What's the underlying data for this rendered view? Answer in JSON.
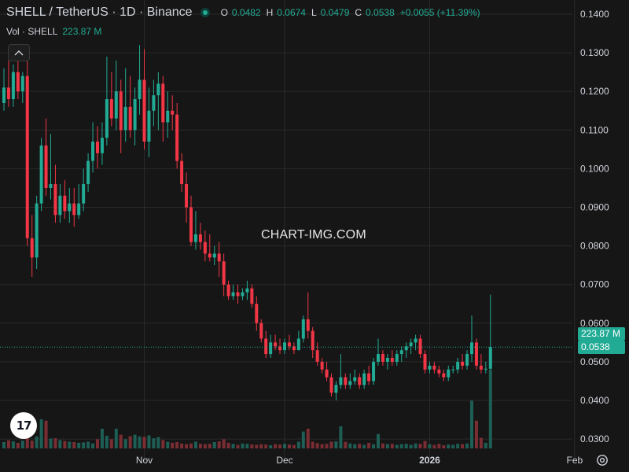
{
  "header": {
    "symbol": "SHELL / TetherUS · 1D · Binance",
    "open_label": "O",
    "open": "0.0482",
    "high_label": "H",
    "high": "0.0674",
    "low_label": "L",
    "low": "0.0479",
    "close_label": "C",
    "close": "0.0538",
    "change": "+0.0055 (+11.39%)"
  },
  "volume_legend": {
    "label": "Vol · SHELL",
    "value": "223.87 M"
  },
  "watermark": "CHART-IMG.COM",
  "logo_text": "17",
  "price_tags": {
    "volume": "223.87 M",
    "price": "0.0538"
  },
  "colors": {
    "up": "#22ab94",
    "down": "#f23645",
    "up_volume": "#1d5e55",
    "down_volume": "#7a2d33",
    "background": "#161616",
    "grid": "#2a2a2a",
    "text": "#d1d4dc"
  },
  "icons": {
    "collapse": "chevron-up-icon",
    "settings": "gear-icon",
    "logo": "tradingview-logo-icon"
  },
  "chart_data": {
    "type": "candlestick",
    "title": "SHELL / TetherUS · 1D · Binance",
    "y_ticks": [
      "0.1400",
      "0.1300",
      "0.1200",
      "0.1100",
      "0.1000",
      "0.0900",
      "0.0800",
      "0.0700",
      "0.0600",
      "0.0500",
      "0.0400",
      "0.0300"
    ],
    "ylim": [
      0.0265,
      0.1435
    ],
    "x_ticks": [
      {
        "label": "Nov",
        "index": 30
      },
      {
        "label": "Dec",
        "index": 60
      },
      {
        "label": "2026",
        "index": 91,
        "bold": true
      },
      {
        "label": "Feb",
        "index": 122
      }
    ],
    "last_price": 0.0538,
    "grid": true,
    "candles": [
      [
        0.117,
        0.126,
        0.115,
        0.121
      ],
      [
        0.121,
        0.128,
        0.116,
        0.118
      ],
      [
        0.118,
        0.127,
        0.116,
        0.125
      ],
      [
        0.125,
        0.13,
        0.118,
        0.12
      ],
      [
        0.12,
        0.125,
        0.117,
        0.124
      ],
      [
        0.124,
        0.129,
        0.08,
        0.082
      ],
      [
        0.082,
        0.088,
        0.072,
        0.077
      ],
      [
        0.077,
        0.093,
        0.074,
        0.091
      ],
      [
        0.091,
        0.108,
        0.089,
        0.106
      ],
      [
        0.106,
        0.113,
        0.093,
        0.095
      ],
      [
        0.095,
        0.109,
        0.092,
        0.096
      ],
      [
        0.096,
        0.101,
        0.086,
        0.088
      ],
      [
        0.088,
        0.096,
        0.086,
        0.093
      ],
      [
        0.093,
        0.097,
        0.087,
        0.089
      ],
      [
        0.089,
        0.095,
        0.086,
        0.091
      ],
      [
        0.091,
        0.095,
        0.085,
        0.088
      ],
      [
        0.088,
        0.096,
        0.087,
        0.091
      ],
      [
        0.091,
        0.1,
        0.089,
        0.096
      ],
      [
        0.096,
        0.104,
        0.094,
        0.102
      ],
      [
        0.102,
        0.112,
        0.099,
        0.107
      ],
      [
        0.107,
        0.111,
        0.1,
        0.104
      ],
      [
        0.104,
        0.112,
        0.101,
        0.108
      ],
      [
        0.108,
        0.129,
        0.106,
        0.118
      ],
      [
        0.118,
        0.125,
        0.111,
        0.113
      ],
      [
        0.113,
        0.128,
        0.11,
        0.12
      ],
      [
        0.12,
        0.123,
        0.104,
        0.11
      ],
      [
        0.11,
        0.126,
        0.107,
        0.116
      ],
      [
        0.116,
        0.124,
        0.108,
        0.11
      ],
      [
        0.11,
        0.121,
        0.106,
        0.118
      ],
      [
        0.118,
        0.132,
        0.114,
        0.123
      ],
      [
        0.123,
        0.131,
        0.105,
        0.107
      ],
      [
        0.107,
        0.121,
        0.103,
        0.115
      ],
      [
        0.115,
        0.123,
        0.111,
        0.119
      ],
      [
        0.119,
        0.125,
        0.11,
        0.122
      ],
      [
        0.122,
        0.124,
        0.107,
        0.112
      ],
      [
        0.112,
        0.12,
        0.108,
        0.115
      ],
      [
        0.115,
        0.119,
        0.11,
        0.114
      ],
      [
        0.114,
        0.117,
        0.1,
        0.102
      ],
      [
        0.102,
        0.104,
        0.094,
        0.096
      ],
      [
        0.096,
        0.099,
        0.086,
        0.09
      ],
      [
        0.09,
        0.093,
        0.08,
        0.081
      ],
      [
        0.081,
        0.089,
        0.079,
        0.083
      ],
      [
        0.083,
        0.086,
        0.079,
        0.081
      ],
      [
        0.081,
        0.084,
        0.076,
        0.078
      ],
      [
        0.078,
        0.083,
        0.076,
        0.077
      ],
      [
        0.077,
        0.08,
        0.075,
        0.078
      ],
      [
        0.078,
        0.081,
        0.072,
        0.076
      ],
      [
        0.076,
        0.078,
        0.067,
        0.07
      ],
      [
        0.07,
        0.071,
        0.066,
        0.067
      ],
      [
        0.067,
        0.07,
        0.066,
        0.068
      ],
      [
        0.068,
        0.07,
        0.065,
        0.067
      ],
      [
        0.067,
        0.069,
        0.066,
        0.068
      ],
      [
        0.068,
        0.071,
        0.066,
        0.069
      ],
      [
        0.069,
        0.07,
        0.064,
        0.065
      ],
      [
        0.065,
        0.067,
        0.058,
        0.06
      ],
      [
        0.06,
        0.061,
        0.055,
        0.056
      ],
      [
        0.056,
        0.058,
        0.051,
        0.052
      ],
      [
        0.052,
        0.057,
        0.051,
        0.055
      ],
      [
        0.055,
        0.057,
        0.053,
        0.054
      ],
      [
        0.054,
        0.056,
        0.052,
        0.053
      ],
      [
        0.053,
        0.056,
        0.052,
        0.055
      ],
      [
        0.055,
        0.057,
        0.053,
        0.054
      ],
      [
        0.054,
        0.055,
        0.052,
        0.053
      ],
      [
        0.053,
        0.058,
        0.053,
        0.056
      ],
      [
        0.056,
        0.062,
        0.055,
        0.061
      ],
      [
        0.061,
        0.068,
        0.056,
        0.058
      ],
      [
        0.058,
        0.059,
        0.051,
        0.053
      ],
      [
        0.053,
        0.055,
        0.049,
        0.05
      ],
      [
        0.05,
        0.051,
        0.047,
        0.048
      ],
      [
        0.048,
        0.05,
        0.045,
        0.046
      ],
      [
        0.046,
        0.047,
        0.041,
        0.042
      ],
      [
        0.042,
        0.045,
        0.04,
        0.044
      ],
      [
        0.044,
        0.052,
        0.043,
        0.046
      ],
      [
        0.046,
        0.047,
        0.043,
        0.044
      ],
      [
        0.044,
        0.047,
        0.043,
        0.045
      ],
      [
        0.045,
        0.048,
        0.044,
        0.046
      ],
      [
        0.046,
        0.047,
        0.043,
        0.044
      ],
      [
        0.044,
        0.048,
        0.043,
        0.047
      ],
      [
        0.047,
        0.049,
        0.044,
        0.045
      ],
      [
        0.045,
        0.051,
        0.044,
        0.05
      ],
      [
        0.05,
        0.056,
        0.049,
        0.052
      ],
      [
        0.052,
        0.053,
        0.049,
        0.05
      ],
      [
        0.05,
        0.052,
        0.048,
        0.051
      ],
      [
        0.051,
        0.053,
        0.049,
        0.05
      ],
      [
        0.05,
        0.053,
        0.049,
        0.052
      ],
      [
        0.052,
        0.054,
        0.05,
        0.053
      ],
      [
        0.053,
        0.055,
        0.051,
        0.054
      ],
      [
        0.054,
        0.056,
        0.052,
        0.055
      ],
      [
        0.055,
        0.057,
        0.053,
        0.056
      ],
      [
        0.056,
        0.057,
        0.051,
        0.052
      ],
      [
        0.052,
        0.053,
        0.047,
        0.048
      ],
      [
        0.048,
        0.05,
        0.047,
        0.049
      ],
      [
        0.049,
        0.05,
        0.047,
        0.048
      ],
      [
        0.048,
        0.049,
        0.046,
        0.047
      ],
      [
        0.047,
        0.048,
        0.045,
        0.046
      ],
      [
        0.046,
        0.049,
        0.045,
        0.048
      ],
      [
        0.048,
        0.049,
        0.047,
        0.048
      ],
      [
        0.048,
        0.051,
        0.047,
        0.05
      ],
      [
        0.05,
        0.052,
        0.048,
        0.049
      ],
      [
        0.049,
        0.053,
        0.048,
        0.052
      ],
      [
        0.052,
        0.062,
        0.05,
        0.055
      ],
      [
        0.055,
        0.056,
        0.048,
        0.049
      ],
      [
        0.049,
        0.052,
        0.047,
        0.048
      ],
      [
        0.048,
        0.05,
        0.047,
        0.0482
      ],
      [
        0.0482,
        0.0674,
        0.0479,
        0.0538
      ]
    ],
    "volume": [
      1.8,
      2.3,
      2.0,
      1.6,
      2.2,
      9.8,
      2.2,
      3.4,
      8.3,
      7.9,
      2.8,
      2.9,
      2.4,
      2.1,
      1.9,
      1.8,
      1.6,
      1.7,
      1.9,
      1.4,
      2.6,
      5.6,
      3.6,
      2.6,
      5.6,
      3.9,
      2.6,
      3.5,
      3.9,
      3.4,
      3.3,
      3.7,
      2.9,
      3.2,
      2.4,
      1.9,
      1.6,
      1.8,
      1.4,
      1.2,
      1.4,
      1.9,
      1.3,
      1.2,
      1.3,
      1.8,
      2.0,
      2.6,
      1.6,
      1.3,
      1.0,
      1.4,
      1.3,
      1.1,
      1.0,
      1.2,
      1.1,
      0.9,
      1.2,
      1.1,
      1.3,
      1.1,
      1.0,
      1.9,
      4.8,
      5.6,
      1.9,
      1.5,
      1.2,
      1.3,
      1.9,
      2.0,
      6.3,
      1.9,
      1.4,
      1.2,
      1.3,
      1.0,
      1.6,
      1.2,
      4.1,
      1.4,
      1.2,
      1.3,
      1.0,
      1.2,
      1.3,
      1.0,
      1.4,
      1.3,
      2.1,
      1.2,
      1.0,
      1.3,
      0.9,
      1.1,
      1.0,
      1.3,
      1.2,
      1.4,
      13.6,
      7.9,
      3.0,
      1.6,
      22.39
    ]
  }
}
